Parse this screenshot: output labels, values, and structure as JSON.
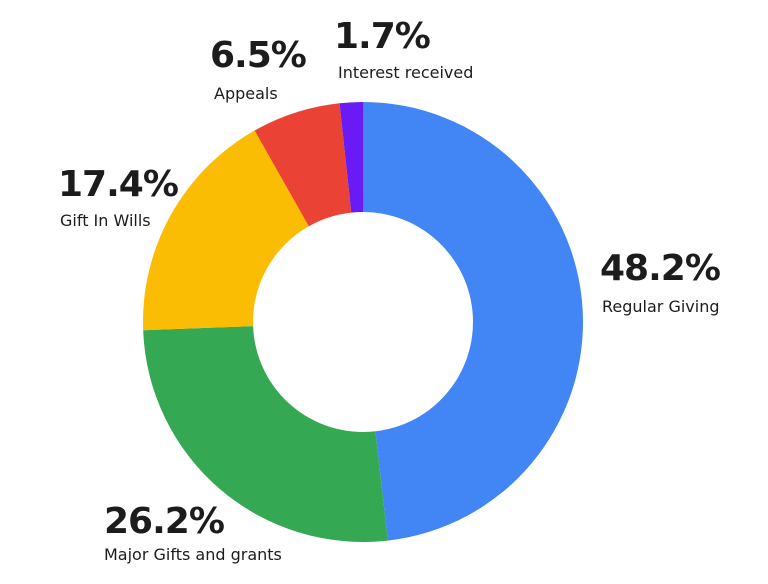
{
  "chart_data": {
    "type": "pie",
    "donut": true,
    "title": "",
    "legend": "none",
    "slices": [
      {
        "label": "Regular Giving",
        "value": 48.2,
        "value_label": "48.2%",
        "color": "#4285F4"
      },
      {
        "label": "Major Gifts and grants",
        "value": 26.2,
        "value_label": "26.2%",
        "color": "#34A853"
      },
      {
        "label": "Gift In Wills",
        "value": 17.4,
        "value_label": "17.4%",
        "color": "#FBBC04"
      },
      {
        "label": "Appeals",
        "value": 6.5,
        "value_label": "6.5%",
        "color": "#EA4335"
      },
      {
        "label": "Interest received",
        "value": 1.7,
        "value_label": "1.7%",
        "color": "#6A1BF5"
      }
    ]
  }
}
